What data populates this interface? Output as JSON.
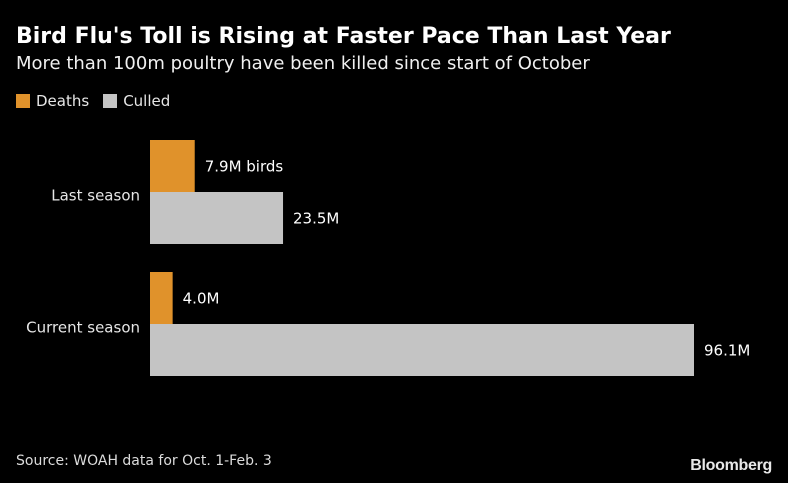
{
  "header": {
    "title": "Bird Flu's Toll is Rising at Faster Pace Than Last Year",
    "subtitle": "More than 100m poultry have been killed since start of October"
  },
  "footer": {
    "source": "Source: WOAH data for Oct. 1-Feb. 3",
    "brand": "Bloomberg"
  },
  "chart_data": {
    "type": "bar",
    "orientation": "horizontal",
    "categories": [
      "Last season",
      "Current season"
    ],
    "series": [
      {
        "name": "Deaths",
        "color": "#e0922b",
        "values": [
          7.9,
          4.0
        ],
        "labels": [
          "7.9M birds",
          "4.0M"
        ]
      },
      {
        "name": "Culled",
        "color": "#c4c4c4",
        "values": [
          23.5,
          96.1
        ],
        "labels": [
          "23.5M",
          "96.1M"
        ]
      }
    ],
    "legend_position": "top-left",
    "grid": false,
    "xlim": [
      0,
      96.1
    ]
  }
}
